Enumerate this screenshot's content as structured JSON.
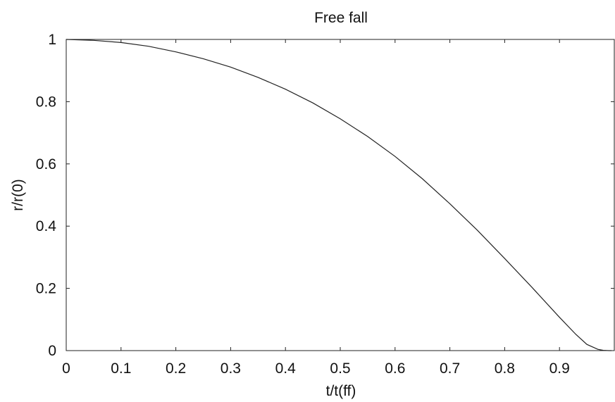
{
  "chart_data": {
    "type": "line",
    "title": "Free fall",
    "xlabel": "t/t(ff)",
    "ylabel": "r/r(0)",
    "xlim": [
      0,
      1
    ],
    "ylim": [
      0,
      1
    ],
    "grid": false,
    "x_ticks": [
      "0",
      "0.1",
      "0.2",
      "0.3",
      "0.4",
      "0.5",
      "0.6",
      "0.7",
      "0.8",
      "0.9"
    ],
    "y_ticks": [
      "0",
      "0.2",
      "0.4",
      "0.6",
      "0.8",
      "1"
    ],
    "series": [
      {
        "color": "#222222",
        "x": [
          0,
          0.05,
          0.1,
          0.15,
          0.2,
          0.25,
          0.3,
          0.35,
          0.4,
          0.45,
          0.5,
          0.55,
          0.6,
          0.65,
          0.7,
          0.75,
          0.8,
          0.85,
          0.9,
          0.93,
          0.95,
          0.97,
          0.98,
          0.99,
          0.995
        ],
        "y": [
          1.0,
          0.997,
          0.99,
          0.978,
          0.96,
          0.938,
          0.911,
          0.878,
          0.84,
          0.796,
          0.745,
          0.688,
          0.624,
          0.552,
          0.472,
          0.387,
          0.296,
          0.203,
          0.107,
          0.052,
          0.02,
          0.004,
          0.001,
          0.0,
          0.0
        ]
      }
    ]
  }
}
